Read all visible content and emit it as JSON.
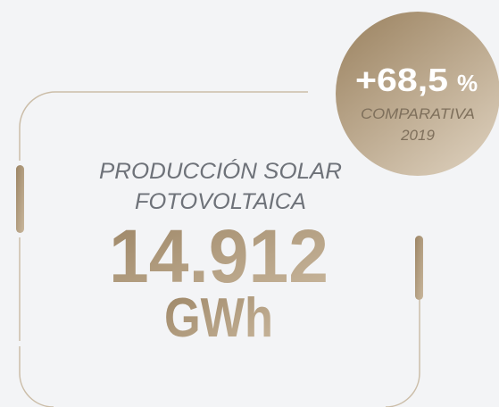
{
  "badge": {
    "value": "+68,5",
    "unit": "%",
    "caption": "COMPARATIVA",
    "year": "2019"
  },
  "metric": {
    "label_line1": "PRODUCCIÓN SOLAR",
    "label_line2": "FOTOVOLTAICA",
    "value": "14.912",
    "unit": "GWh"
  }
}
